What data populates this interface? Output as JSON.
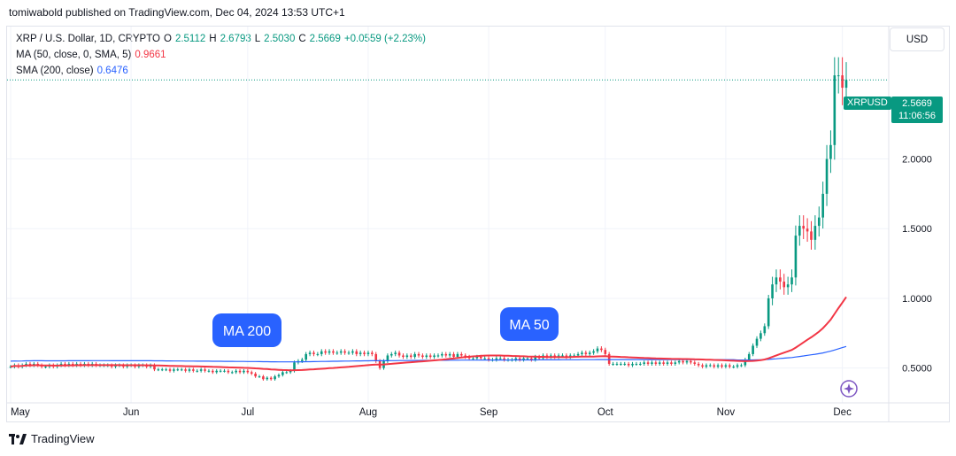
{
  "attribution": "tomiwabold published on TradingView.com, Dec 04, 2024 13:53 UTC+1",
  "legend": {
    "symbol": "XRP / U.S. Dollar, 1D, CRYPTO",
    "o_label": "O",
    "o_val": "2.5112",
    "h_label": "H",
    "h_val": "2.6793",
    "l_label": "L",
    "l_val": "2.5030",
    "c_label": "C",
    "c_val": "2.5669",
    "change": "+0.0559 (+2.23%)",
    "ma50_label": "MA (50, close, 0, SMA, 5)",
    "ma50_val": "0.9661",
    "sma200_label": "SMA (200, close)",
    "sma200_val": "0.6476"
  },
  "unit_button": "USD",
  "price_tag": {
    "ticker": "XRPUSD",
    "price": "2.5669",
    "countdown": "11:06:56"
  },
  "brand": "TradingView",
  "colors": {
    "up": "#089981",
    "down": "#f23645",
    "ma50": "#f23645",
    "sma200": "#2962ff",
    "annotation": "#2962ff"
  },
  "chart_data": {
    "type": "candlestick",
    "symbol": "XRPUSD",
    "timeframe": "1D",
    "y_axis": {
      "position": "right",
      "ticks": [
        0.5,
        1.0,
        1.5,
        2.0
      ],
      "tick_labels": [
        "0.5000",
        "1.0000",
        "1.5000",
        "2.0000"
      ],
      "range": [
        0.25,
        2.95
      ]
    },
    "x_axis": {
      "months": [
        "May",
        "Jun",
        "Jul",
        "Aug",
        "Sep",
        "Oct",
        "Nov",
        "Dec"
      ]
    },
    "grid": true,
    "annotations": [
      "MA 200",
      "MA 50"
    ],
    "last_close": 2.5669,
    "close": [
      0.51,
      0.52,
      0.51,
      0.52,
      0.53,
      0.52,
      0.53,
      0.52,
      0.51,
      0.51,
      0.52,
      0.51,
      0.52,
      0.53,
      0.52,
      0.53,
      0.52,
      0.53,
      0.52,
      0.53,
      0.52,
      0.53,
      0.52,
      0.52,
      0.52,
      0.52,
      0.51,
      0.52,
      0.52,
      0.51,
      0.52,
      0.52,
      0.51,
      0.52,
      0.52,
      0.51,
      0.52,
      0.49,
      0.49,
      0.49,
      0.49,
      0.48,
      0.49,
      0.49,
      0.49,
      0.48,
      0.49,
      0.48,
      0.48,
      0.49,
      0.48,
      0.48,
      0.47,
      0.48,
      0.48,
      0.48,
      0.47,
      0.47,
      0.48,
      0.47,
      0.48,
      0.47,
      0.46,
      0.44,
      0.44,
      0.42,
      0.43,
      0.42,
      0.44,
      0.45,
      0.47,
      0.47,
      0.48,
      0.54,
      0.55,
      0.56,
      0.6,
      0.61,
      0.6,
      0.6,
      0.62,
      0.61,
      0.62,
      0.61,
      0.61,
      0.62,
      0.61,
      0.61,
      0.62,
      0.6,
      0.61,
      0.6,
      0.61,
      0.6,
      0.55,
      0.5,
      0.55,
      0.59,
      0.6,
      0.61,
      0.59,
      0.58,
      0.59,
      0.58,
      0.6,
      0.59,
      0.58,
      0.59,
      0.58,
      0.59,
      0.59,
      0.6,
      0.59,
      0.6,
      0.58,
      0.6,
      0.59,
      0.58,
      0.57,
      0.57,
      0.58,
      0.57,
      0.57,
      0.56,
      0.56,
      0.57,
      0.57,
      0.56,
      0.56,
      0.56,
      0.57,
      0.56,
      0.57,
      0.57,
      0.56,
      0.58,
      0.57,
      0.59,
      0.58,
      0.59,
      0.58,
      0.59,
      0.59,
      0.58,
      0.59,
      0.59,
      0.6,
      0.61,
      0.6,
      0.61,
      0.62,
      0.64,
      0.63,
      0.6,
      0.53,
      0.53,
      0.53,
      0.53,
      0.53,
      0.52,
      0.53,
      0.53,
      0.53,
      0.54,
      0.53,
      0.54,
      0.53,
      0.54,
      0.53,
      0.54,
      0.53,
      0.54,
      0.55,
      0.54,
      0.55,
      0.54,
      0.53,
      0.52,
      0.51,
      0.52,
      0.52,
      0.51,
      0.52,
      0.51,
      0.52,
      0.51,
      0.51,
      0.52,
      0.52,
      0.56,
      0.6,
      0.66,
      0.71,
      0.75,
      0.8,
      1.0,
      1.1,
      1.15,
      1.12,
      1.08,
      1.1,
      1.15,
      1.45,
      1.52,
      1.5,
      1.48,
      1.42,
      1.52,
      1.58,
      1.75,
      2.0,
      2.1,
      2.6,
      2.6,
      2.5112,
      2.5669
    ],
    "start_date": "2024-05-01"
  }
}
